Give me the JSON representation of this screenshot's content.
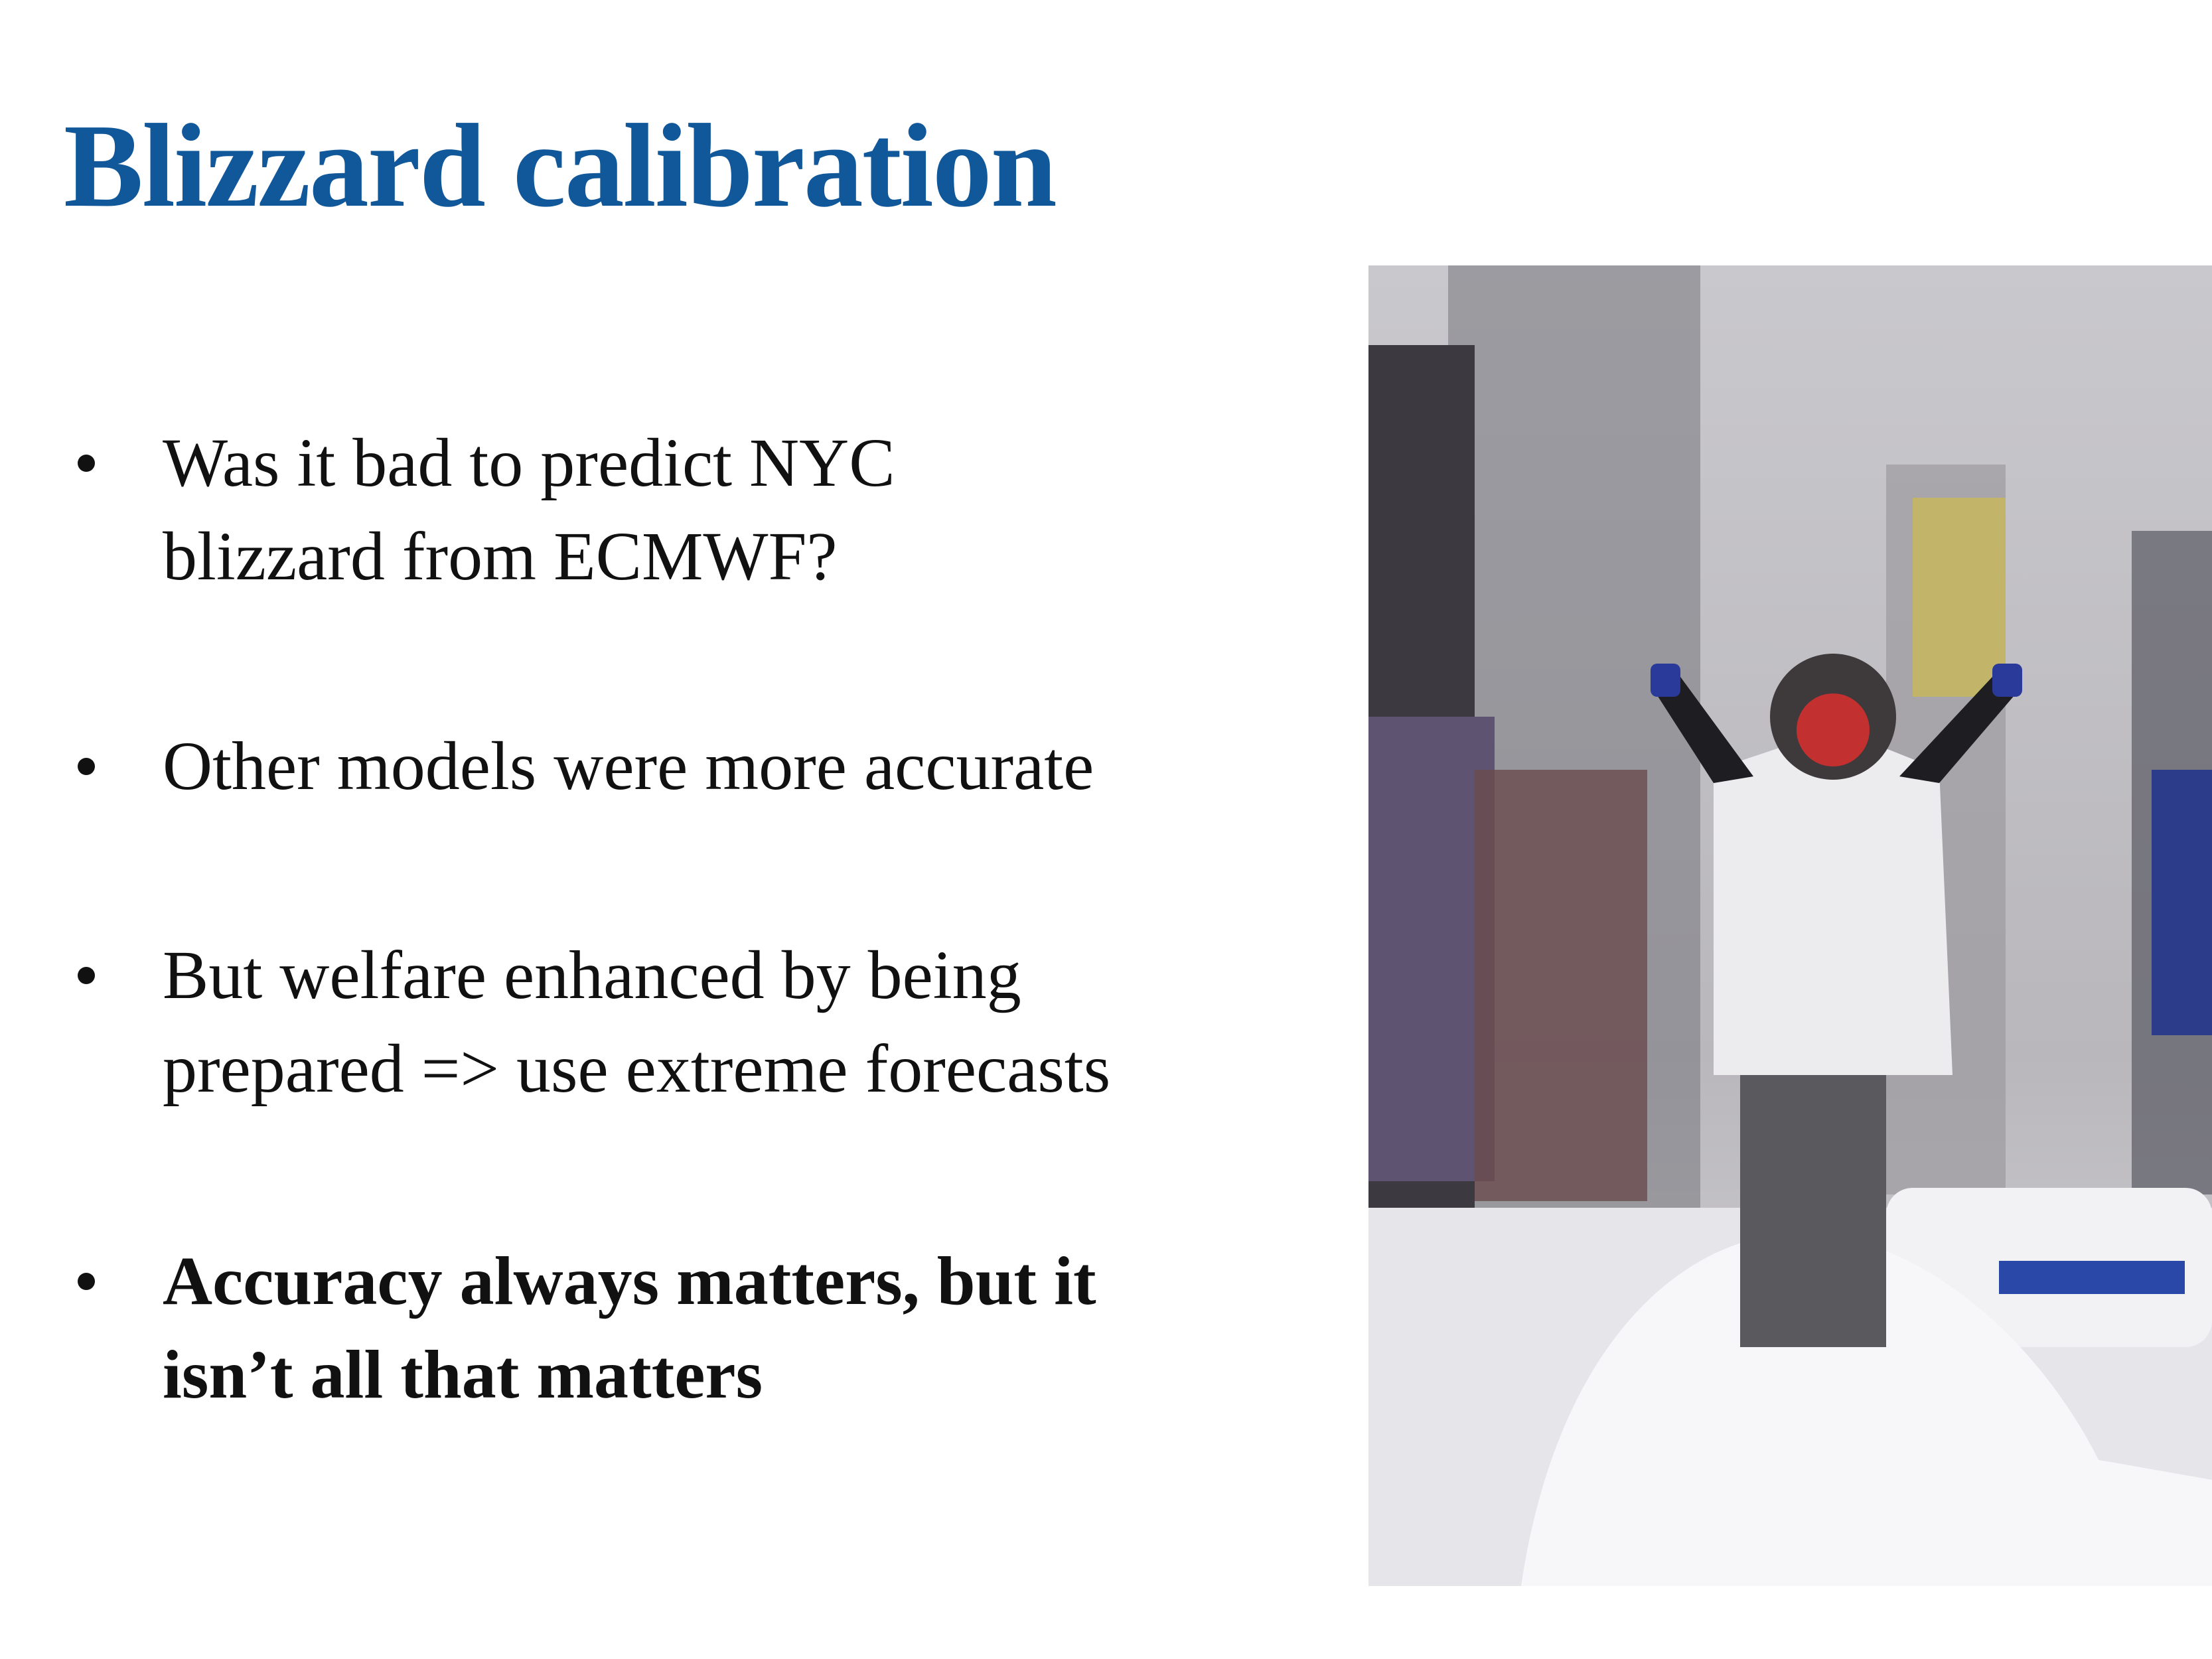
{
  "header": {
    "title": "Blizzard calibration"
  },
  "bullets": [
    {
      "lines": [
        "Was it bad to predict NYC",
        "blizzard from ECMWF?"
      ],
      "bold": false
    },
    {
      "lines": [
        "Other models were more accurate"
      ],
      "bold": false
    },
    {
      "lines": [
        "But welfare enhanced by being",
        "prepared => use extreme forecasts"
      ],
      "bold": false
    },
    {
      "lines": [
        "Accuracy always matters, but it",
        "isn’t all that matters"
      ],
      "bold": true
    }
  ]
}
